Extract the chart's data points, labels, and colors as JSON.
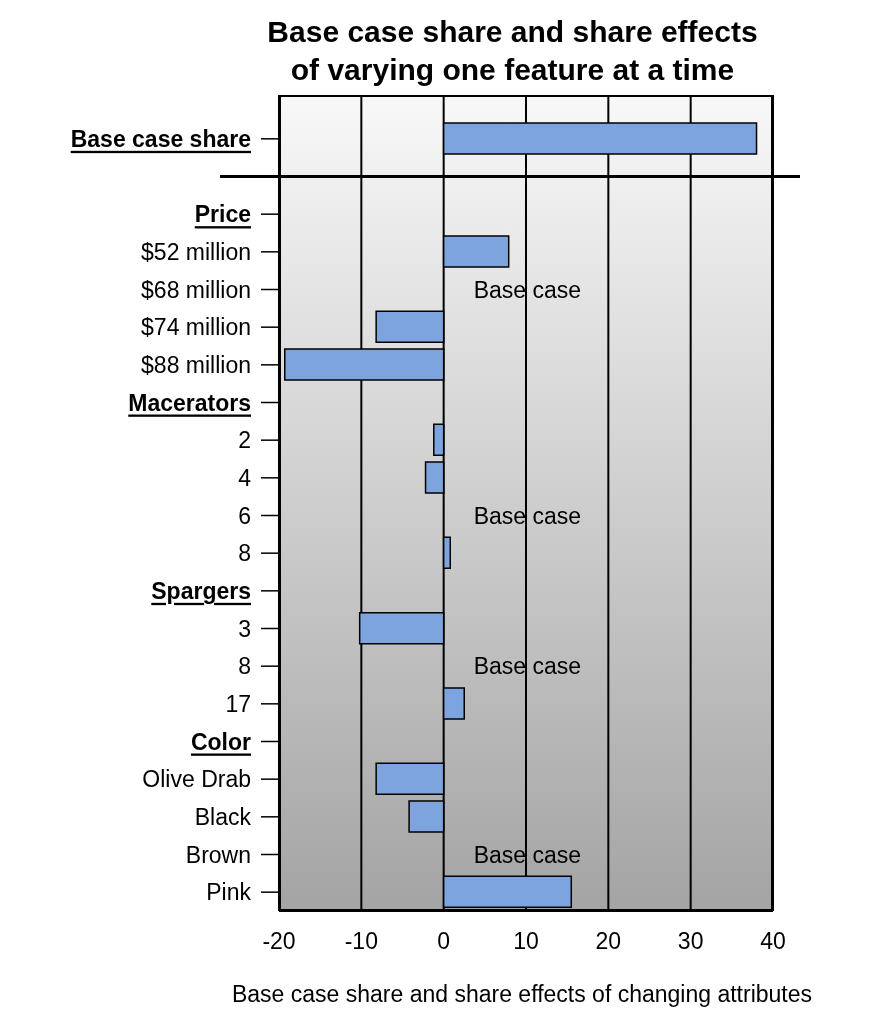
{
  "chart_data": {
    "type": "bar",
    "orientation": "horizontal",
    "title": "Base case share and share effects of varying one feature at a time",
    "xlabel": "Base case share and share effects of changing attributes",
    "categories": [
      "Base case share",
      null,
      "Price",
      "$52 million",
      "$68 million",
      "$74 million",
      "$88 million",
      "Macerators",
      "2",
      "4",
      "6",
      "8",
      "Spargers",
      "3",
      "8",
      "17",
      "Color",
      "Olive Drab",
      "Black",
      "Brown",
      "Pink"
    ],
    "series": [
      {
        "color": "#7ea4e0",
        "values": [
          38,
          null,
          null,
          null,
          null,
          null,
          null,
          null,
          null,
          null,
          null,
          null,
          null,
          null,
          null,
          null,
          null,
          null,
          null,
          null,
          null
        ]
      },
      {
        "color": "#7ea4e0",
        "values": [
          null,
          null,
          null,
          7.9,
          0,
          -8.2,
          -19.3,
          null,
          -1.2,
          -2.2,
          0,
          0.8,
          null,
          -10.2,
          0,
          2.5,
          null,
          -8.2,
          -4.2,
          0,
          15.5
        ],
        "value_labels": [
          null,
          null,
          null,
          null,
          "Base case",
          null,
          null,
          null,
          null,
          null,
          "Base case",
          null,
          null,
          null,
          "Base case",
          null,
          null,
          null,
          null,
          "Base case",
          null
        ]
      }
    ],
    "xlim": [
      -20,
      40
    ],
    "xticks": [
      -20,
      -10,
      0,
      10,
      20,
      30,
      40
    ],
    "grid": "x"
  }
}
